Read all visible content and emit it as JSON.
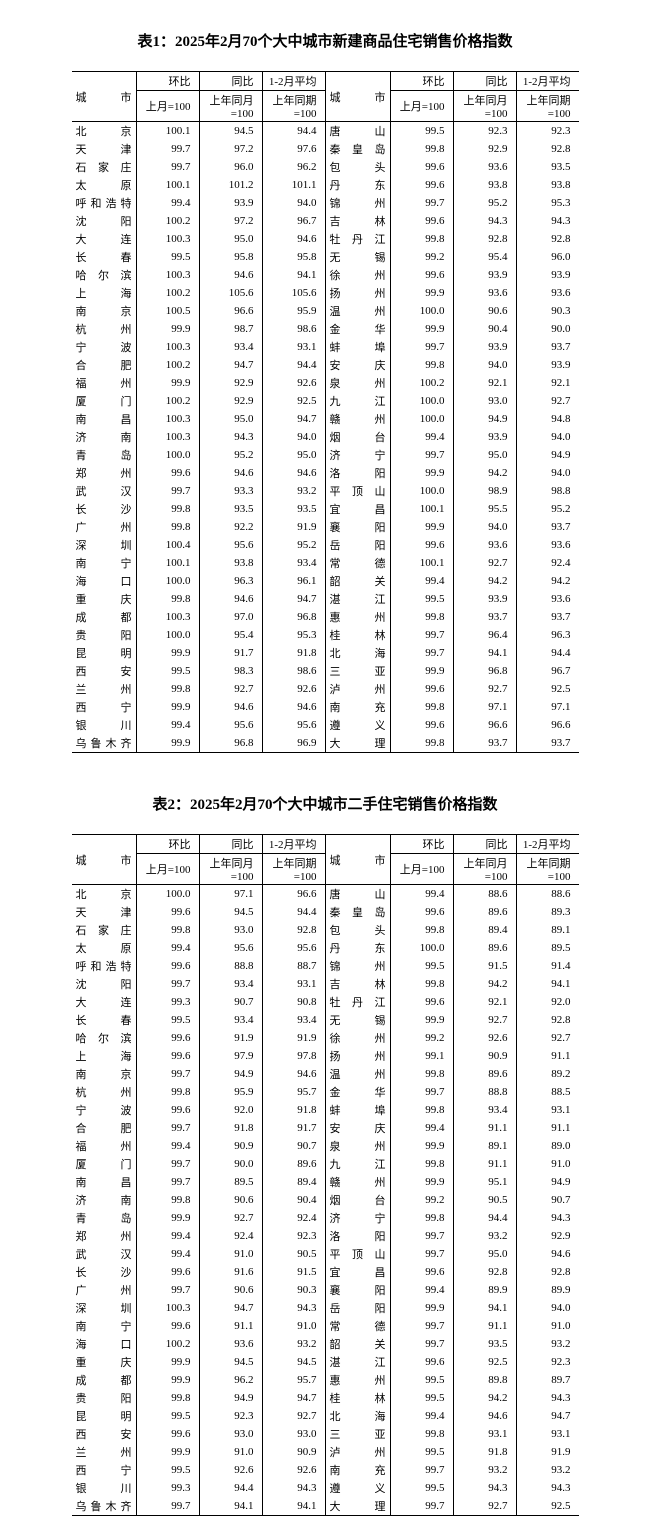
{
  "table1": {
    "title": "表1：2025年2月70个大中城市新建商品住宅销售价格指数",
    "header": {
      "city": "城市",
      "mom": "环比",
      "mom_sub": "上月=100",
      "yoy": "同比",
      "yoy_sub": "上年同月=100",
      "avg": "1-2月平均",
      "avg_sub": "上年同期=100"
    },
    "left": [
      {
        "c": "北　　京",
        "v": [
          "100.1",
          "94.5",
          "94.4"
        ]
      },
      {
        "c": "天　　津",
        "v": [
          "99.7",
          "97.2",
          "97.6"
        ]
      },
      {
        "c": "石 家 庄",
        "v": [
          "99.7",
          "96.0",
          "96.2"
        ]
      },
      {
        "c": "太　　原",
        "v": [
          "100.1",
          "101.2",
          "101.1"
        ]
      },
      {
        "c": "呼和浩特",
        "v": [
          "99.4",
          "93.9",
          "94.0"
        ]
      },
      {
        "c": "沈　　阳",
        "v": [
          "100.2",
          "97.2",
          "96.7"
        ]
      },
      {
        "c": "大　　连",
        "v": [
          "100.3",
          "95.0",
          "94.6"
        ]
      },
      {
        "c": "长　　春",
        "v": [
          "99.5",
          "95.8",
          "95.8"
        ]
      },
      {
        "c": "哈 尔 滨",
        "v": [
          "100.3",
          "94.6",
          "94.1"
        ]
      },
      {
        "c": "上　　海",
        "v": [
          "100.2",
          "105.6",
          "105.6"
        ]
      },
      {
        "c": "南　　京",
        "v": [
          "100.5",
          "96.6",
          "95.9"
        ]
      },
      {
        "c": "杭　　州",
        "v": [
          "99.9",
          "98.7",
          "98.6"
        ]
      },
      {
        "c": "宁　　波",
        "v": [
          "100.3",
          "93.4",
          "93.1"
        ]
      },
      {
        "c": "合　　肥",
        "v": [
          "100.2",
          "94.7",
          "94.4"
        ]
      },
      {
        "c": "福　　州",
        "v": [
          "99.9",
          "92.9",
          "92.6"
        ]
      },
      {
        "c": "厦　　门",
        "v": [
          "100.2",
          "92.9",
          "92.5"
        ]
      },
      {
        "c": "南　　昌",
        "v": [
          "100.3",
          "95.0",
          "94.7"
        ]
      },
      {
        "c": "济　　南",
        "v": [
          "100.3",
          "94.3",
          "94.0"
        ]
      },
      {
        "c": "青　　岛",
        "v": [
          "100.0",
          "95.2",
          "95.0"
        ]
      },
      {
        "c": "郑　　州",
        "v": [
          "99.6",
          "94.6",
          "94.6"
        ]
      },
      {
        "c": "武　　汉",
        "v": [
          "99.7",
          "93.3",
          "93.2"
        ]
      },
      {
        "c": "长　　沙",
        "v": [
          "99.8",
          "93.5",
          "93.5"
        ]
      },
      {
        "c": "广　　州",
        "v": [
          "99.8",
          "92.2",
          "91.9"
        ]
      },
      {
        "c": "深　　圳",
        "v": [
          "100.4",
          "95.6",
          "95.2"
        ]
      },
      {
        "c": "南　　宁",
        "v": [
          "100.1",
          "93.8",
          "93.4"
        ]
      },
      {
        "c": "海　　口",
        "v": [
          "100.0",
          "96.3",
          "96.1"
        ]
      },
      {
        "c": "重　　庆",
        "v": [
          "99.8",
          "94.6",
          "94.7"
        ]
      },
      {
        "c": "成　　都",
        "v": [
          "100.3",
          "97.0",
          "96.8"
        ]
      },
      {
        "c": "贵　　阳",
        "v": [
          "100.0",
          "95.4",
          "95.3"
        ]
      },
      {
        "c": "昆　　明",
        "v": [
          "99.9",
          "91.7",
          "91.8"
        ]
      },
      {
        "c": "西　　安",
        "v": [
          "99.5",
          "98.3",
          "98.6"
        ]
      },
      {
        "c": "兰　　州",
        "v": [
          "99.8",
          "92.7",
          "92.6"
        ]
      },
      {
        "c": "西　　宁",
        "v": [
          "99.9",
          "94.6",
          "94.6"
        ]
      },
      {
        "c": "银　　川",
        "v": [
          "99.4",
          "95.6",
          "95.6"
        ]
      },
      {
        "c": "乌鲁木齐",
        "v": [
          "99.9",
          "96.8",
          "96.9"
        ]
      }
    ],
    "right": [
      {
        "c": "唐　　山",
        "v": [
          "99.5",
          "92.3",
          "92.3"
        ]
      },
      {
        "c": "秦 皇 岛",
        "v": [
          "99.8",
          "92.9",
          "92.8"
        ]
      },
      {
        "c": "包　　头",
        "v": [
          "99.6",
          "93.6",
          "93.5"
        ]
      },
      {
        "c": "丹　　东",
        "v": [
          "99.6",
          "93.8",
          "93.8"
        ]
      },
      {
        "c": "锦　　州",
        "v": [
          "99.7",
          "95.2",
          "95.3"
        ]
      },
      {
        "c": "吉　　林",
        "v": [
          "99.6",
          "94.3",
          "94.3"
        ]
      },
      {
        "c": "牡 丹 江",
        "v": [
          "99.8",
          "92.8",
          "92.8"
        ]
      },
      {
        "c": "无　　锡",
        "v": [
          "99.2",
          "95.4",
          "96.0"
        ]
      },
      {
        "c": "徐　　州",
        "v": [
          "99.6",
          "93.9",
          "93.9"
        ]
      },
      {
        "c": "扬　　州",
        "v": [
          "99.9",
          "93.6",
          "93.6"
        ]
      },
      {
        "c": "温　　州",
        "v": [
          "100.0",
          "90.6",
          "90.3"
        ]
      },
      {
        "c": "金　　华",
        "v": [
          "99.9",
          "90.4",
          "90.0"
        ]
      },
      {
        "c": "蚌　　埠",
        "v": [
          "99.7",
          "93.9",
          "93.7"
        ]
      },
      {
        "c": "安　　庆",
        "v": [
          "99.8",
          "94.0",
          "93.9"
        ]
      },
      {
        "c": "泉　　州",
        "v": [
          "100.2",
          "92.1",
          "92.1"
        ]
      },
      {
        "c": "九　　江",
        "v": [
          "100.0",
          "93.0",
          "92.7"
        ]
      },
      {
        "c": "赣　　州",
        "v": [
          "100.0",
          "94.9",
          "94.8"
        ]
      },
      {
        "c": "烟　　台",
        "v": [
          "99.4",
          "93.9",
          "94.0"
        ]
      },
      {
        "c": "济　　宁",
        "v": [
          "99.7",
          "95.0",
          "94.9"
        ]
      },
      {
        "c": "洛　　阳",
        "v": [
          "99.9",
          "94.2",
          "94.0"
        ]
      },
      {
        "c": "平 顶 山",
        "v": [
          "100.0",
          "98.9",
          "98.8"
        ]
      },
      {
        "c": "宜　　昌",
        "v": [
          "100.1",
          "95.5",
          "95.2"
        ]
      },
      {
        "c": "襄　　阳",
        "v": [
          "99.9",
          "94.0",
          "93.7"
        ]
      },
      {
        "c": "岳　　阳",
        "v": [
          "99.6",
          "93.6",
          "93.6"
        ]
      },
      {
        "c": "常　　德",
        "v": [
          "100.1",
          "92.7",
          "92.4"
        ]
      },
      {
        "c": "韶　　关",
        "v": [
          "99.4",
          "94.2",
          "94.2"
        ]
      },
      {
        "c": "湛　　江",
        "v": [
          "99.5",
          "93.9",
          "93.6"
        ]
      },
      {
        "c": "惠　　州",
        "v": [
          "99.8",
          "93.7",
          "93.7"
        ]
      },
      {
        "c": "桂　　林",
        "v": [
          "99.7",
          "96.4",
          "96.3"
        ]
      },
      {
        "c": "北　　海",
        "v": [
          "99.7",
          "94.1",
          "94.4"
        ]
      },
      {
        "c": "三　　亚",
        "v": [
          "99.9",
          "96.8",
          "96.7"
        ]
      },
      {
        "c": "泸　　州",
        "v": [
          "99.6",
          "92.7",
          "92.5"
        ]
      },
      {
        "c": "南　　充",
        "v": [
          "99.8",
          "97.1",
          "97.1"
        ]
      },
      {
        "c": "遵　　义",
        "v": [
          "99.6",
          "96.6",
          "96.6"
        ]
      },
      {
        "c": "大　　理",
        "v": [
          "99.8",
          "93.7",
          "93.7"
        ]
      }
    ]
  },
  "table2": {
    "title": "表2：2025年2月70个大中城市二手住宅销售价格指数",
    "header": {
      "city": "城市",
      "mom": "环比",
      "mom_sub": "上月=100",
      "yoy": "同比",
      "yoy_sub": "上年同月=100",
      "avg": "1-2月平均",
      "avg_sub": "上年同期=100"
    },
    "left": [
      {
        "c": "北　　京",
        "v": [
          "100.0",
          "97.1",
          "96.6"
        ]
      },
      {
        "c": "天　　津",
        "v": [
          "99.6",
          "94.5",
          "94.4"
        ]
      },
      {
        "c": "石 家 庄",
        "v": [
          "99.8",
          "93.0",
          "92.8"
        ]
      },
      {
        "c": "太　　原",
        "v": [
          "99.4",
          "95.6",
          "95.6"
        ]
      },
      {
        "c": "呼和浩特",
        "v": [
          "99.6",
          "88.8",
          "88.7"
        ]
      },
      {
        "c": "沈　　阳",
        "v": [
          "99.7",
          "93.4",
          "93.1"
        ]
      },
      {
        "c": "大　　连",
        "v": [
          "99.3",
          "90.7",
          "90.8"
        ]
      },
      {
        "c": "长　　春",
        "v": [
          "99.5",
          "93.4",
          "93.4"
        ]
      },
      {
        "c": "哈 尔 滨",
        "v": [
          "99.6",
          "91.9",
          "91.9"
        ]
      },
      {
        "c": "上　　海",
        "v": [
          "99.6",
          "97.9",
          "97.8"
        ]
      },
      {
        "c": "南　　京",
        "v": [
          "99.7",
          "94.9",
          "94.6"
        ]
      },
      {
        "c": "杭　　州",
        "v": [
          "99.8",
          "95.9",
          "95.7"
        ]
      },
      {
        "c": "宁　　波",
        "v": [
          "99.6",
          "92.0",
          "91.8"
        ]
      },
      {
        "c": "合　　肥",
        "v": [
          "99.7",
          "91.8",
          "91.7"
        ]
      },
      {
        "c": "福　　州",
        "v": [
          "99.4",
          "90.9",
          "90.7"
        ]
      },
      {
        "c": "厦　　门",
        "v": [
          "99.7",
          "90.0",
          "89.6"
        ]
      },
      {
        "c": "南　　昌",
        "v": [
          "99.7",
          "89.5",
          "89.4"
        ]
      },
      {
        "c": "济　　南",
        "v": [
          "99.8",
          "90.6",
          "90.4"
        ]
      },
      {
        "c": "青　　岛",
        "v": [
          "99.9",
          "92.7",
          "92.4"
        ]
      },
      {
        "c": "郑　　州",
        "v": [
          "99.4",
          "92.4",
          "92.3"
        ]
      },
      {
        "c": "武　　汉",
        "v": [
          "99.4",
          "91.0",
          "90.5"
        ]
      },
      {
        "c": "长　　沙",
        "v": [
          "99.6",
          "91.6",
          "91.5"
        ]
      },
      {
        "c": "广　　州",
        "v": [
          "99.7",
          "90.6",
          "90.3"
        ]
      },
      {
        "c": "深　　圳",
        "v": [
          "100.3",
          "94.7",
          "94.3"
        ]
      },
      {
        "c": "南　　宁",
        "v": [
          "99.6",
          "91.1",
          "91.0"
        ]
      },
      {
        "c": "海　　口",
        "v": [
          "100.2",
          "93.6",
          "93.2"
        ]
      },
      {
        "c": "重　　庆",
        "v": [
          "99.9",
          "94.5",
          "94.5"
        ]
      },
      {
        "c": "成　　都",
        "v": [
          "99.9",
          "96.2",
          "95.7"
        ]
      },
      {
        "c": "贵　　阳",
        "v": [
          "99.8",
          "94.9",
          "94.7"
        ]
      },
      {
        "c": "昆　　明",
        "v": [
          "99.5",
          "92.3",
          "92.7"
        ]
      },
      {
        "c": "西　　安",
        "v": [
          "99.6",
          "93.0",
          "93.0"
        ]
      },
      {
        "c": "兰　　州",
        "v": [
          "99.9",
          "91.0",
          "90.9"
        ]
      },
      {
        "c": "西　　宁",
        "v": [
          "99.5",
          "92.6",
          "92.6"
        ]
      },
      {
        "c": "银　　川",
        "v": [
          "99.3",
          "94.4",
          "94.3"
        ]
      },
      {
        "c": "乌鲁木齐",
        "v": [
          "99.7",
          "94.1",
          "94.1"
        ]
      }
    ],
    "right": [
      {
        "c": "唐　　山",
        "v": [
          "99.4",
          "88.6",
          "88.6"
        ]
      },
      {
        "c": "秦 皇 岛",
        "v": [
          "99.6",
          "89.6",
          "89.3"
        ]
      },
      {
        "c": "包　　头",
        "v": [
          "99.8",
          "89.4",
          "89.1"
        ]
      },
      {
        "c": "丹　　东",
        "v": [
          "100.0",
          "89.6",
          "89.5"
        ]
      },
      {
        "c": "锦　　州",
        "v": [
          "99.5",
          "91.5",
          "91.4"
        ]
      },
      {
        "c": "吉　　林",
        "v": [
          "99.8",
          "94.2",
          "94.1"
        ]
      },
      {
        "c": "牡 丹 江",
        "v": [
          "99.6",
          "92.1",
          "92.0"
        ]
      },
      {
        "c": "无　　锡",
        "v": [
          "99.9",
          "92.7",
          "92.8"
        ]
      },
      {
        "c": "徐　　州",
        "v": [
          "99.2",
          "92.6",
          "92.7"
        ]
      },
      {
        "c": "扬　　州",
        "v": [
          "99.1",
          "90.9",
          "91.1"
        ]
      },
      {
        "c": "温　　州",
        "v": [
          "99.8",
          "89.6",
          "89.2"
        ]
      },
      {
        "c": "金　　华",
        "v": [
          "99.7",
          "88.8",
          "88.5"
        ]
      },
      {
        "c": "蚌　　埠",
        "v": [
          "99.8",
          "93.4",
          "93.1"
        ]
      },
      {
        "c": "安　　庆",
        "v": [
          "99.4",
          "91.1",
          "91.1"
        ]
      },
      {
        "c": "泉　　州",
        "v": [
          "99.9",
          "89.1",
          "89.0"
        ]
      },
      {
        "c": "九　　江",
        "v": [
          "99.8",
          "91.1",
          "91.0"
        ]
      },
      {
        "c": "赣　　州",
        "v": [
          "99.9",
          "95.1",
          "94.9"
        ]
      },
      {
        "c": "烟　　台",
        "v": [
          "99.2",
          "90.5",
          "90.7"
        ]
      },
      {
        "c": "济　　宁",
        "v": [
          "99.8",
          "94.4",
          "94.3"
        ]
      },
      {
        "c": "洛　　阳",
        "v": [
          "99.7",
          "93.2",
          "92.9"
        ]
      },
      {
        "c": "平 顶 山",
        "v": [
          "99.7",
          "95.0",
          "94.6"
        ]
      },
      {
        "c": "宜　　昌",
        "v": [
          "99.6",
          "92.8",
          "92.8"
        ]
      },
      {
        "c": "襄　　阳",
        "v": [
          "99.4",
          "89.9",
          "89.9"
        ]
      },
      {
        "c": "岳　　阳",
        "v": [
          "99.9",
          "94.1",
          "94.0"
        ]
      },
      {
        "c": "常　　德",
        "v": [
          "99.7",
          "91.1",
          "91.0"
        ]
      },
      {
        "c": "韶　　关",
        "v": [
          "99.7",
          "93.5",
          "93.2"
        ]
      },
      {
        "c": "湛　　江",
        "v": [
          "99.6",
          "92.5",
          "92.3"
        ]
      },
      {
        "c": "惠　　州",
        "v": [
          "99.5",
          "89.8",
          "89.7"
        ]
      },
      {
        "c": "桂　　林",
        "v": [
          "99.5",
          "94.2",
          "94.3"
        ]
      },
      {
        "c": "北　　海",
        "v": [
          "99.4",
          "94.6",
          "94.7"
        ]
      },
      {
        "c": "三　　亚",
        "v": [
          "99.8",
          "93.1",
          "93.1"
        ]
      },
      {
        "c": "泸　　州",
        "v": [
          "99.5",
          "91.8",
          "91.9"
        ]
      },
      {
        "c": "南　　充",
        "v": [
          "99.7",
          "93.2",
          "93.2"
        ]
      },
      {
        "c": "遵　　义",
        "v": [
          "99.5",
          "94.3",
          "94.3"
        ]
      },
      {
        "c": "大　　理",
        "v": [
          "99.7",
          "92.7",
          "92.5"
        ]
      }
    ]
  }
}
